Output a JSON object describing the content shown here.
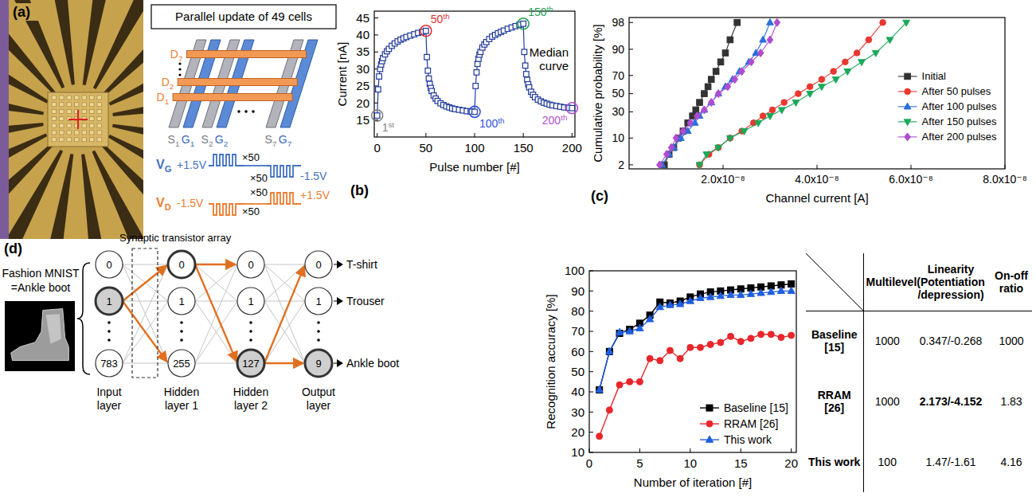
{
  "figure_a": {
    "label": "(a)",
    "title": "Parallel update of 49 cells",
    "drain_lines": [
      "D7",
      "D2",
      "D1"
    ],
    "source_gate_lines": [
      "S1",
      "G1",
      "S2",
      "G2",
      "S7",
      "G7"
    ],
    "gate_pulse": {
      "label": "VG",
      "first": "+1.5V",
      "first_count": "×50",
      "second": "-1.5V",
      "second_count": "×50"
    },
    "drain_pulse": {
      "label": "VD",
      "first": "-1.5V",
      "first_count": "×50",
      "second": "+1.5V",
      "second_count": "×50"
    }
  },
  "chart_data": [
    {
      "type": "line",
      "panel_label": "(b)",
      "x_label": "Pulse number [#]",
      "y_label": "Current [nA]",
      "xlim": [
        -3,
        203
      ],
      "xticks": [
        0,
        50,
        100,
        150,
        200
      ],
      "ylim": [
        10,
        47
      ],
      "yticks": [
        15,
        20,
        25,
        30,
        35,
        40,
        45
      ],
      "grid": false,
      "marker": "square-open",
      "line_style": "solid",
      "series": [
        {
          "name": "Median curve",
          "color": "#1f3a9a",
          "x": [
            0,
            1,
            2,
            3,
            4,
            5,
            6,
            8,
            10,
            12,
            15,
            18,
            21,
            24,
            27,
            30,
            34,
            38,
            42,
            46,
            50,
            51,
            52,
            53,
            54,
            55,
            56,
            58,
            60,
            62,
            65,
            68,
            71,
            74,
            77,
            80,
            84,
            88,
            92,
            96,
            100,
            101,
            102,
            103,
            104,
            105,
            106,
            108,
            110,
            112,
            115,
            118,
            121,
            124,
            127,
            130,
            134,
            138,
            142,
            146,
            150,
            151,
            152,
            153,
            154,
            155,
            156,
            158,
            160,
            162,
            165,
            168,
            171,
            174,
            177,
            180,
            184,
            188,
            192,
            196,
            200
          ],
          "values": [
            16.3,
            24,
            27.8,
            30,
            31.3,
            32.3,
            33.2,
            34.3,
            35.2,
            35.9,
            36.8,
            37.5,
            38.1,
            38.6,
            39,
            39.4,
            39.8,
            40.2,
            40.6,
            40.9,
            41.2,
            33.5,
            29.5,
            27.2,
            25.6,
            24.4,
            23.5,
            22.2,
            21.3,
            20.6,
            19.9,
            19.4,
            19,
            18.7,
            18.4,
            18.2,
            18,
            17.8,
            17.6,
            17.5,
            17.4,
            25,
            29,
            31.5,
            33,
            34.2,
            35,
            36.3,
            37.2,
            37.9,
            38.8,
            39.5,
            40,
            40.5,
            40.9,
            41.3,
            41.8,
            42.2,
            42.6,
            43,
            43.3,
            35,
            31,
            28.5,
            26.8,
            25.5,
            24.6,
            23.3,
            22.4,
            21.7,
            21,
            20.5,
            20.1,
            19.8,
            19.5,
            19.3,
            19.1,
            18.9,
            18.7,
            18.6,
            18.5
          ]
        }
      ],
      "annotations": [
        {
          "text": "1st",
          "x": 0,
          "y": 16.3,
          "color": "#7f7f7f"
        },
        {
          "text": "50th",
          "x": 50,
          "y": 41.2,
          "color": "#e03030"
        },
        {
          "text": "100th",
          "x": 100,
          "y": 17.4,
          "color": "#3050e0"
        },
        {
          "text": "150th",
          "x": 150,
          "y": 43.3,
          "color": "#20a050"
        },
        {
          "text": "200th",
          "x": 200,
          "y": 18.5,
          "color": "#b050d0"
        }
      ]
    },
    {
      "type": "probability",
      "panel_label": "(c)",
      "x_label": "Channel current [A]",
      "y_label": "Cumulative probability [%]",
      "xlim": [
        0,
        8e-08
      ],
      "xticks": [
        {
          "value": 2e-08,
          "label": "2.0x10⁻⁸"
        },
        {
          "value": 4e-08,
          "label": "4.0x10⁻⁸"
        },
        {
          "value": 6e-08,
          "label": "6.0x10⁻⁸"
        },
        {
          "value": 8e-08,
          "label": "8.0x10⁻⁸"
        }
      ],
      "ylim": [
        1.5,
        98.6
      ],
      "yticks": [
        2,
        10,
        30,
        50,
        70,
        90,
        98
      ],
      "grid": false,
      "legend": "right",
      "line_style": "solid",
      "series": [
        {
          "name": "Initial",
          "color": "#333333",
          "marker": "square",
          "x": [
            7.5e-09,
            8.5e-09,
            9.5e-09,
            1.05e-08,
            1.15e-08,
            1.25e-08,
            1.35e-08,
            1.42e-08,
            1.5e-08,
            1.6e-08,
            1.68e-08,
            1.75e-08,
            1.85e-08,
            1.95e-08,
            2.05e-08,
            2.15e-08,
            2.3e-08
          ],
          "values": [
            2,
            4,
            6,
            10,
            14,
            20,
            26,
            32,
            40,
            50,
            58,
            66,
            74,
            82,
            88,
            94,
            98
          ]
        },
        {
          "name": "After 50 pulses",
          "color": "#e8382f",
          "marker": "circle",
          "x": [
            1.5e-08,
            1.7e-08,
            1.9e-08,
            2.15e-08,
            2.4e-08,
            2.65e-08,
            2.85e-08,
            3.05e-08,
            3.3e-08,
            3.6e-08,
            3.85e-08,
            4.1e-08,
            4.35e-08,
            4.6e-08,
            4.85e-08,
            5.1e-08,
            5.4e-08
          ],
          "values": [
            2,
            4,
            6,
            10,
            14,
            20,
            26,
            32,
            40,
            50,
            58,
            66,
            74,
            82,
            88,
            94,
            98
          ]
        },
        {
          "name": "After 100 pulses",
          "color": "#2a6fdb",
          "marker": "triangle-up",
          "x": [
            7e-09,
            8.5e-09,
            9.5e-09,
            1.1e-08,
            1.25e-08,
            1.4e-08,
            1.5e-08,
            1.6e-08,
            1.75e-08,
            1.9e-08,
            2.05e-08,
            2.2e-08,
            2.35e-08,
            2.55e-08,
            2.7e-08,
            2.85e-08,
            3e-08
          ],
          "values": [
            2,
            4,
            6,
            10,
            14,
            20,
            26,
            32,
            40,
            50,
            58,
            66,
            74,
            82,
            88,
            94,
            98
          ]
        },
        {
          "name": "After 150 pulses",
          "color": "#1ba85a",
          "marker": "triangle-down",
          "x": [
            1.5e-08,
            1.65e-08,
            1.9e-08,
            2.15e-08,
            2.45e-08,
            2.75e-08,
            3e-08,
            3.25e-08,
            3.55e-08,
            3.85e-08,
            4.1e-08,
            4.4e-08,
            4.65e-08,
            4.95e-08,
            5.25e-08,
            5.55e-08,
            5.9e-08
          ],
          "values": [
            2,
            4,
            6,
            10,
            14,
            20,
            26,
            32,
            40,
            50,
            58,
            66,
            74,
            82,
            88,
            94,
            98
          ]
        },
        {
          "name": "After 200 pulses",
          "color": "#b04cd0",
          "marker": "diamond",
          "x": [
            6.5e-09,
            8e-09,
            9e-09,
            1e-08,
            1.15e-08,
            1.3e-08,
            1.45e-08,
            1.6e-08,
            1.75e-08,
            1.9e-08,
            2.1e-08,
            2.25e-08,
            2.4e-08,
            2.6e-08,
            2.8e-08,
            3e-08,
            3.15e-08
          ],
          "values": [
            2,
            4,
            6,
            10,
            14,
            20,
            26,
            32,
            40,
            50,
            58,
            66,
            74,
            82,
            88,
            94,
            98
          ]
        }
      ]
    },
    {
      "type": "line",
      "x_label": "Number of iteration [#]",
      "y_label": "Recognition accuracy [%]",
      "xlim": [
        0,
        20.5
      ],
      "xticks": [
        0,
        5,
        10,
        15,
        20
      ],
      "ylim": [
        10,
        100
      ],
      "yticks": [
        10,
        20,
        30,
        40,
        50,
        60,
        70,
        80,
        90,
        100
      ],
      "grid": false,
      "legend": "lower right",
      "line_style": "solid",
      "x": [
        1,
        2,
        3,
        4,
        5,
        6,
        7,
        8,
        9,
        10,
        11,
        12,
        13,
        14,
        15,
        16,
        17,
        18,
        19,
        20
      ],
      "series": [
        {
          "name": "Baseline [15]",
          "color": "#000000",
          "marker": "square",
          "values": [
            41,
            60,
            69,
            71,
            74,
            78,
            84.5,
            84,
            85,
            87,
            88.5,
            89.5,
            90,
            90.5,
            91,
            91.5,
            92,
            92.5,
            93,
            93.5
          ]
        },
        {
          "name": "RRAM [26]",
          "color": "#e8262b",
          "marker": "circle",
          "values": [
            18,
            31,
            43.5,
            45,
            45,
            56.5,
            55.5,
            60.5,
            56.5,
            62,
            62,
            63.5,
            64.5,
            67.5,
            65,
            66.5,
            68.5,
            68.5,
            67,
            68
          ]
        },
        {
          "name": "This work",
          "color": "#1f5fe0",
          "marker": "triangle-up",
          "values": [
            41,
            60,
            69.5,
            70,
            71.5,
            76,
            82,
            83,
            83.5,
            85,
            86.5,
            87,
            87.5,
            88,
            88,
            88.5,
            89,
            89.5,
            90,
            90
          ]
        }
      ]
    }
  ],
  "figure_d": {
    "label": "(d)",
    "dataset": "Fashion MNIST",
    "sample": "=Ankle boot",
    "array_label": "Synaptic transistor array",
    "layers": [
      {
        "name": "Input layer",
        "nodes": [
          "0",
          "1",
          "783"
        ]
      },
      {
        "name": "Hidden layer 1",
        "nodes": [
          "0",
          "1",
          "255"
        ]
      },
      {
        "name": "Hidden layer 2",
        "nodes": [
          "0",
          "1",
          "127"
        ]
      },
      {
        "name": "Output layer",
        "nodes": [
          "0",
          "1",
          "9"
        ]
      }
    ],
    "outputs": [
      "T-shirt",
      "Trouser",
      "Ankle boot"
    ]
  },
  "table": {
    "columns": [
      "Multilevel",
      "Linearity (Potentiation /depression)",
      "On-off ratio"
    ],
    "rows": [
      {
        "label": "Baseline [15]",
        "cells": [
          "1000",
          "0.347/-0.268",
          "1000"
        ]
      },
      {
        "label": "RRAM [26]",
        "cells": [
          "1000",
          "2.173/-4.152",
          "1.83"
        ]
      },
      {
        "label": "This work",
        "cells": [
          "100",
          "1.47/-1.61",
          "4.16"
        ]
      }
    ]
  }
}
